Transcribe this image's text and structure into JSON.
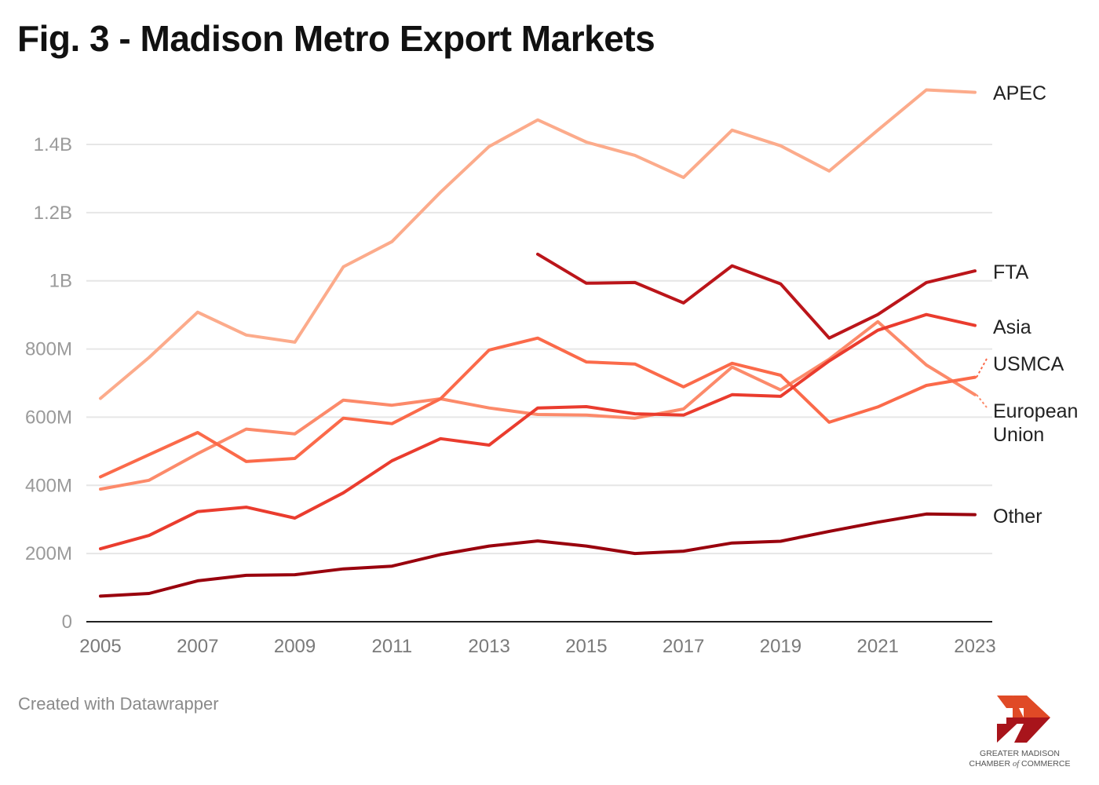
{
  "title": "Fig. 3 - Madison Metro Export Markets",
  "footer": "Created with Datawrapper",
  "logo": {
    "icon": "fast-forward-arrows-icon",
    "line1": "GREATER MADISON",
    "line2_a": "CHAMBER ",
    "line2_of": "of",
    "line2_b": " COMMERCE",
    "colors": {
      "top": "#e04a26",
      "bottom": "#a8141b"
    }
  },
  "chart_data": {
    "type": "line",
    "title": "Fig. 3 - Madison Metro Export Markets",
    "xlabel": "",
    "ylabel": "",
    "x": [
      2005,
      2006,
      2007,
      2008,
      2009,
      2010,
      2011,
      2012,
      2013,
      2014,
      2015,
      2016,
      2017,
      2018,
      2019,
      2020,
      2021,
      2022,
      2023
    ],
    "x_ticks": [
      "2005",
      "2007",
      "2009",
      "2011",
      "2013",
      "2015",
      "2017",
      "2019",
      "2021",
      "2023"
    ],
    "x_tick_values": [
      2005,
      2007,
      2009,
      2011,
      2013,
      2015,
      2017,
      2019,
      2021,
      2023
    ],
    "y_ticks": [
      "0",
      "200M",
      "400M",
      "600M",
      "800M",
      "1B",
      "1.2B",
      "1.4B"
    ],
    "y_tick_values": [
      0,
      200,
      400,
      600,
      800,
      1000,
      1200,
      1400
    ],
    "y_unit": "millions USD",
    "ylim": [
      0,
      1560
    ],
    "xlim": [
      2005,
      2023
    ],
    "grid": true,
    "legend": "direct labels at right end of lines",
    "series": [
      {
        "name": "APEC",
        "color": "#fcab8b",
        "label_lines": [
          "APEC"
        ],
        "dashed_connector": false,
        "values": [
          655,
          775,
          908,
          841,
          820,
          1041,
          1115,
          1260,
          1394,
          1472,
          1407,
          1368,
          1303,
          1442,
          1396,
          1322,
          1442,
          1560,
          1553
        ]
      },
      {
        "name": "FTA",
        "color": "#bb151a",
        "label_lines": [
          "FTA"
        ],
        "dashed_connector": false,
        "values": [
          null,
          null,
          null,
          null,
          null,
          null,
          null,
          null,
          null,
          1078,
          993,
          995,
          935,
          1044,
          991,
          832,
          901,
          995,
          1029
        ]
      },
      {
        "name": "Asia",
        "color": "#ea3c2e",
        "label_lines": [
          "Asia"
        ],
        "dashed_connector": false,
        "values": [
          214,
          253,
          323,
          336,
          304,
          378,
          472,
          537,
          518,
          627,
          631,
          610,
          606,
          666,
          661,
          765,
          855,
          901,
          869
        ]
      },
      {
        "name": "USMCA",
        "color": "#fb6a4a",
        "label_lines": [
          "USMCA"
        ],
        "dashed_connector": true,
        "values": [
          425,
          490,
          555,
          470,
          479,
          597,
          581,
          654,
          797,
          832,
          762,
          756,
          689,
          758,
          723,
          585,
          630,
          693,
          717
        ]
      },
      {
        "name": "European Union",
        "color": "#fc8a6a",
        "label_lines": [
          "European",
          "Union"
        ],
        "dashed_connector": true,
        "values": [
          389,
          415,
          493,
          565,
          551,
          650,
          635,
          654,
          627,
          608,
          606,
          597,
          624,
          747,
          680,
          770,
          880,
          753,
          666
        ]
      },
      {
        "name": "Other",
        "color": "#99000d",
        "label_lines": [
          "Other"
        ],
        "dashed_connector": false,
        "values": [
          75,
          83,
          120,
          136,
          138,
          155,
          163,
          197,
          222,
          237,
          222,
          200,
          207,
          231,
          236,
          265,
          292,
          316,
          314
        ]
      }
    ]
  }
}
